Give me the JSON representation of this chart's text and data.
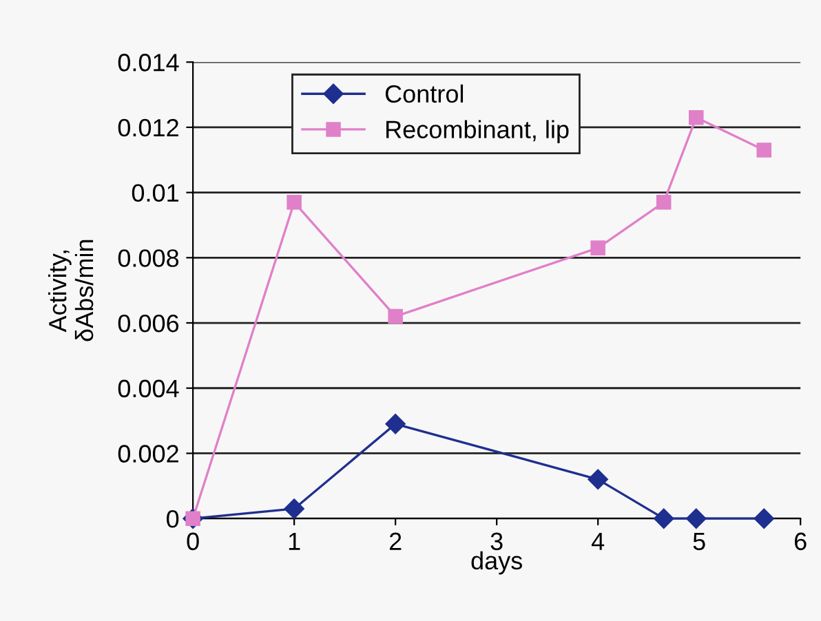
{
  "chart_data": {
    "type": "line",
    "xlabel": "days",
    "ylabel": "Activity,\nδAbs/min",
    "xlim": [
      0,
      6
    ],
    "xticks": [
      0,
      1,
      2,
      3,
      4,
      5,
      6
    ],
    "ylim": [
      0,
      0.014
    ],
    "yticks": [
      {
        "value": 0,
        "label": "0"
      },
      0.002,
      0.004,
      0.006,
      0.008,
      0.01,
      0.012,
      0.014
    ],
    "grid": "y",
    "legend": "top",
    "series": [
      {
        "name": "Control",
        "color": "#1f2f8f",
        "marker": "diamond",
        "x": [
          0,
          1,
          2,
          4,
          4.65,
          4.97,
          5.64
        ],
        "values": [
          0,
          0.0003,
          0.0029,
          0.0012,
          0,
          0,
          0
        ]
      },
      {
        "name": "Recombinant, lip",
        "color": "#e080c8",
        "marker": "square",
        "x": [
          0,
          1,
          2,
          4,
          4.65,
          4.97,
          5.64
        ],
        "values": [
          0,
          0.0097,
          0.0062,
          0.0083,
          0.0097,
          0.0123,
          0.0113
        ]
      }
    ]
  }
}
